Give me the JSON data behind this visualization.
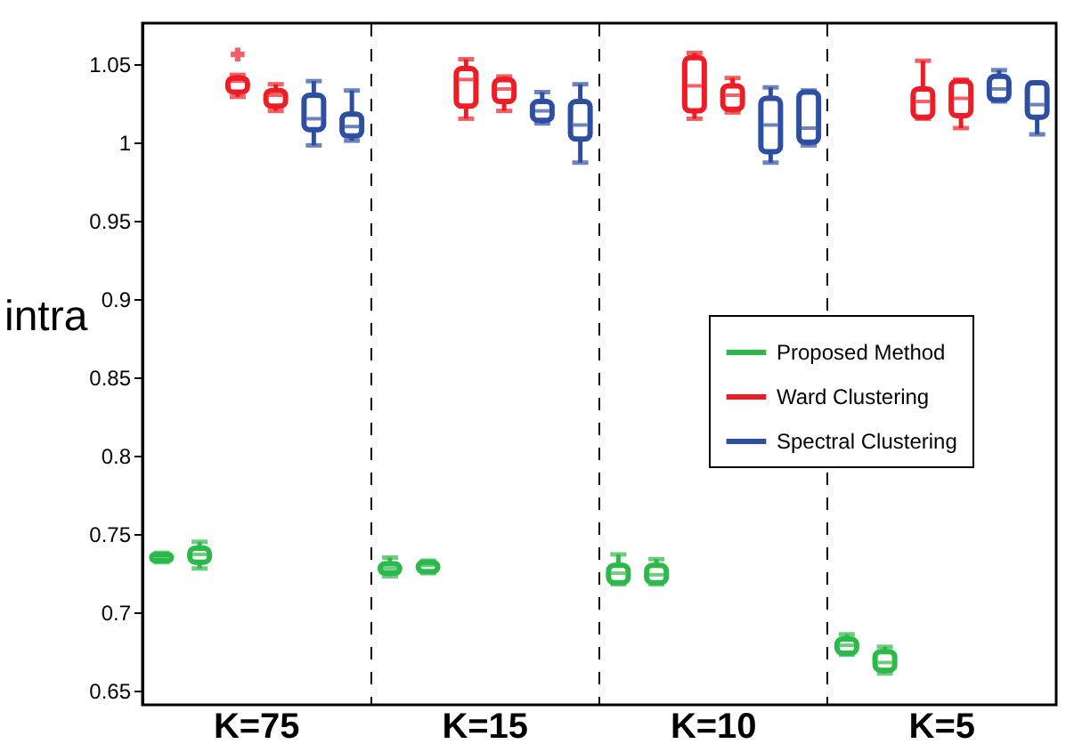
{
  "chart_data": {
    "type": "box",
    "ylabel": "intra",
    "categories": [
      "K=75",
      "K=15",
      "K=10",
      "K=5"
    ],
    "ylim": [
      0.641,
      1.076
    ],
    "yticks": [
      0.65,
      0.7,
      0.75,
      0.8,
      0.85,
      0.9,
      0.95,
      1,
      1.05
    ],
    "grid": "x",
    "legend": "right",
    "series": [
      {
        "name": "Proposed Method",
        "color": "#2db84a",
        "boxes": [
          {
            "low": 0.732,
            "q1": 0.733,
            "median": 0.735,
            "q3": 0.737,
            "high": 0.738
          },
          {
            "low": 0.723,
            "q1": 0.725,
            "median": 0.728,
            "q3": 0.731,
            "high": 0.735
          },
          {
            "low": 0.718,
            "q1": 0.719,
            "median": 0.725,
            "q3": 0.73,
            "high": 0.737
          },
          {
            "low": 0.673,
            "q1": 0.674,
            "median": 0.679,
            "q3": 0.683,
            "high": 0.686
          }
        ]
      },
      {
        "color": "#2db84a",
        "boxes": [
          {
            "low": 0.728,
            "q1": 0.732,
            "median": 0.737,
            "q3": 0.741,
            "high": 0.745
          },
          {
            "low": 0.725,
            "q1": 0.726,
            "median": 0.73,
            "q3": 0.732,
            "high": 0.733
          },
          {
            "low": 0.718,
            "q1": 0.719,
            "median": 0.724,
            "q3": 0.73,
            "high": 0.734
          },
          {
            "low": 0.661,
            "q1": 0.663,
            "median": 0.668,
            "q3": 0.675,
            "high": 0.678
          }
        ]
      },
      {
        "name": "Ward Clustering",
        "color": "#ee1c24",
        "boxes": [
          {
            "low": 1.029,
            "q1": 1.032,
            "median": 1.039,
            "q3": 1.041,
            "high": 1.043,
            "outliers": [
              1.056
            ]
          },
          {
            "low": 1.015,
            "q1": 1.023,
            "median": 1.04,
            "q3": 1.047,
            "high": 1.053
          },
          {
            "low": 1.015,
            "q1": 1.02,
            "median": 1.036,
            "q3": 1.054,
            "high": 1.057
          },
          {
            "low": 1.015,
            "q1": 1.016,
            "median": 1.026,
            "q3": 1.034,
            "high": 1.052
          }
        ]
      },
      {
        "color": "#ee1c24",
        "boxes": [
          {
            "low": 1.02,
            "q1": 1.023,
            "median": 1.03,
            "q3": 1.033,
            "high": 1.037
          },
          {
            "low": 1.02,
            "q1": 1.026,
            "median": 1.034,
            "q3": 1.04,
            "high": 1.042
          },
          {
            "low": 1.019,
            "q1": 1.021,
            "median": 1.03,
            "q3": 1.036,
            "high": 1.041
          },
          {
            "low": 1.009,
            "q1": 1.017,
            "median": 1.028,
            "q3": 1.039,
            "high": 1.04
          }
        ]
      },
      {
        "name": "Spectral Clustering",
        "color": "#2e4ea2",
        "boxes": [
          {
            "low": 0.998,
            "q1": 1.008,
            "median": 1.015,
            "q3": 1.03,
            "high": 1.039
          },
          {
            "low": 1.012,
            "q1": 1.014,
            "median": 1.02,
            "q3": 1.026,
            "high": 1.032
          },
          {
            "low": 0.987,
            "q1": 0.994,
            "median": 1.011,
            "q3": 1.028,
            "high": 1.035
          },
          {
            "low": 1.026,
            "q1": 1.027,
            "median": 1.034,
            "q3": 1.042,
            "high": 1.046
          }
        ]
      },
      {
        "color": "#2e4ea2",
        "boxes": [
          {
            "low": 1.001,
            "q1": 1.004,
            "median": 1.01,
            "q3": 1.018,
            "high": 1.033
          },
          {
            "low": 0.987,
            "q1": 1.002,
            "median": 1.011,
            "q3": 1.026,
            "high": 1.037
          },
          {
            "low": 0.998,
            "q1": 1.0,
            "median": 1.009,
            "q3": 1.032,
            "high": 1.033
          },
          {
            "low": 1.005,
            "q1": 1.016,
            "median": 1.024,
            "q3": 1.038,
            "high": 1.038
          }
        ]
      }
    ]
  }
}
